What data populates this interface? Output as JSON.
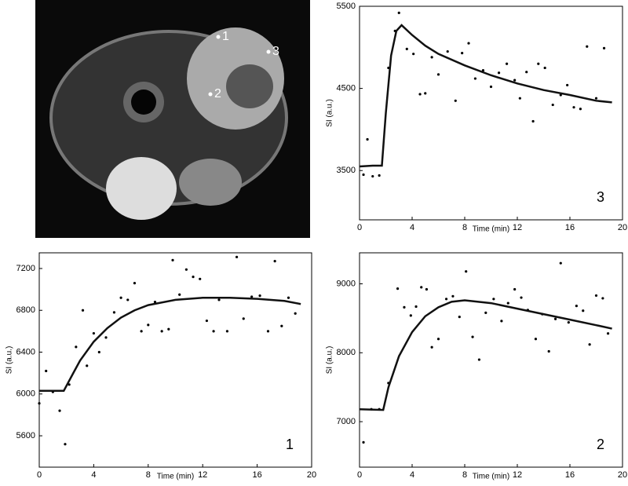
{
  "image": {
    "labels": [
      "1",
      "2",
      "3"
    ]
  },
  "chart_data": [
    {
      "type": "scatter",
      "annotation": "3",
      "xlabel": "Time (min)",
      "ylabel": "SI (a.u.)",
      "xlim": [
        0,
        20
      ],
      "xticks": [
        0,
        4,
        8,
        12,
        16,
        20
      ],
      "ylim": [
        2900,
        5500
      ],
      "yticks": [
        3500,
        4500,
        5500
      ],
      "series": [
        {
          "style": "points",
          "color": "#000000",
          "x": [
            0.3,
            1.0,
            1.5,
            0.6,
            2.2,
            2.7,
            3.0,
            3.6,
            4.1,
            4.6,
            5.0,
            5.5,
            6.0,
            6.7,
            7.3,
            7.8,
            8.3,
            8.8,
            9.4,
            10.0,
            10.6,
            11.2,
            11.8,
            12.2,
            12.7,
            13.2,
            13.6,
            14.1,
            14.7,
            15.3,
            15.8,
            16.3,
            16.8,
            17.3,
            18.0,
            18.6
          ],
          "values": [
            3450,
            3430,
            3440,
            3880,
            4750,
            5200,
            5420,
            4980,
            4920,
            4430,
            4440,
            4880,
            4670,
            4950,
            4350,
            4930,
            5050,
            4620,
            4720,
            4520,
            4690,
            4800,
            4600,
            4380,
            4700,
            4100,
            4800,
            4750,
            4300,
            4420,
            4540,
            4270,
            4250,
            5010,
            4380,
            4990
          ]
        },
        {
          "style": "line",
          "color": "#111111",
          "x": [
            0,
            1,
            1.7,
            2,
            2.4,
            2.8,
            3.2,
            4,
            5,
            6,
            8,
            10,
            12,
            14,
            16,
            18,
            19.2
          ],
          "values": [
            3550,
            3560,
            3560,
            4200,
            4900,
            5200,
            5270,
            5150,
            5020,
            4920,
            4780,
            4660,
            4560,
            4480,
            4420,
            4350,
            4330
          ]
        }
      ]
    },
    {
      "type": "scatter",
      "annotation": "1",
      "xlabel": "Time (min)",
      "ylabel": "SI (a.u.)",
      "xlim": [
        0,
        20
      ],
      "xticks": [
        0,
        4,
        8,
        12,
        16,
        20
      ],
      "ylim": [
        5300,
        7350
      ],
      "yticks": [
        5600,
        6000,
        6400,
        6800,
        7200
      ],
      "series": [
        {
          "style": "points",
          "color": "#000000",
          "x": [
            0,
            0.5,
            1,
            1.5,
            1.9,
            2.2,
            2.7,
            3.2,
            3.5,
            4,
            4.4,
            4.9,
            5.5,
            6,
            6.5,
            7,
            7.5,
            8,
            8.5,
            9,
            9.5,
            9.8,
            10.3,
            10.8,
            11.3,
            11.8,
            12.3,
            12.8,
            13.2,
            13.8,
            14.5,
            15,
            15.6,
            16.2,
            16.8,
            17.3,
            17.8,
            18.3,
            18.8
          ],
          "values": [
            5910,
            6220,
            6020,
            5840,
            5520,
            6090,
            6450,
            6800,
            6270,
            6580,
            6400,
            6540,
            6780,
            6920,
            6900,
            7060,
            6600,
            6660,
            6880,
            6600,
            6620,
            7280,
            6950,
            7190,
            7120,
            7100,
            6700,
            6600,
            6900,
            6600,
            7310,
            6720,
            6930,
            6940,
            6600,
            7270,
            6650,
            6920,
            6770
          ]
        },
        {
          "style": "line",
          "color": "#111111",
          "x": [
            0,
            1.8,
            2.5,
            3,
            4,
            5,
            6,
            7,
            8,
            10,
            12,
            14,
            16,
            18,
            19.2
          ],
          "values": [
            6030,
            6030,
            6200,
            6320,
            6500,
            6630,
            6730,
            6800,
            6850,
            6900,
            6920,
            6920,
            6910,
            6890,
            6860
          ]
        }
      ]
    },
    {
      "type": "scatter",
      "annotation": "2",
      "xlabel": "Time (min)",
      "ylabel": "SI (a.u.)",
      "xlim": [
        0,
        20
      ],
      "xticks": [
        0,
        4,
        8,
        12,
        16,
        20
      ],
      "ylim": [
        6340,
        9450
      ],
      "yticks": [
        7000,
        8000,
        9000
      ],
      "series": [
        {
          "style": "points",
          "color": "#000000",
          "x": [
            0.3,
            0.9,
            1.5,
            2.2,
            2.9,
            3.4,
            3.9,
            4.3,
            4.7,
            5.1,
            5.5,
            6,
            6.6,
            7.1,
            7.6,
            8.1,
            8.6,
            9.1,
            9.6,
            10.2,
            10.8,
            11.3,
            11.8,
            12.3,
            12.8,
            13.4,
            13.9,
            14.4,
            14.9,
            15.3,
            15.9,
            16.5,
            17,
            17.5,
            18,
            18.5,
            18.9
          ],
          "values": [
            6700,
            7180,
            7180,
            7560,
            8930,
            8660,
            8540,
            8670,
            8950,
            8920,
            8080,
            8200,
            8780,
            8820,
            8520,
            9180,
            8230,
            7900,
            8580,
            8780,
            8460,
            8720,
            8920,
            8800,
            8620,
            8200,
            8560,
            8020,
            8490,
            9300,
            8440,
            8680,
            8610,
            8120,
            8830,
            8790,
            8280
          ]
        },
        {
          "style": "line",
          "color": "#111111",
          "x": [
            0,
            1.8,
            2.2,
            3,
            4,
            5,
            6,
            7,
            8,
            10,
            12,
            14,
            16,
            18,
            19.2
          ],
          "values": [
            7180,
            7170,
            7500,
            7950,
            8300,
            8530,
            8660,
            8740,
            8760,
            8720,
            8640,
            8560,
            8480,
            8400,
            8350
          ]
        }
      ]
    }
  ]
}
